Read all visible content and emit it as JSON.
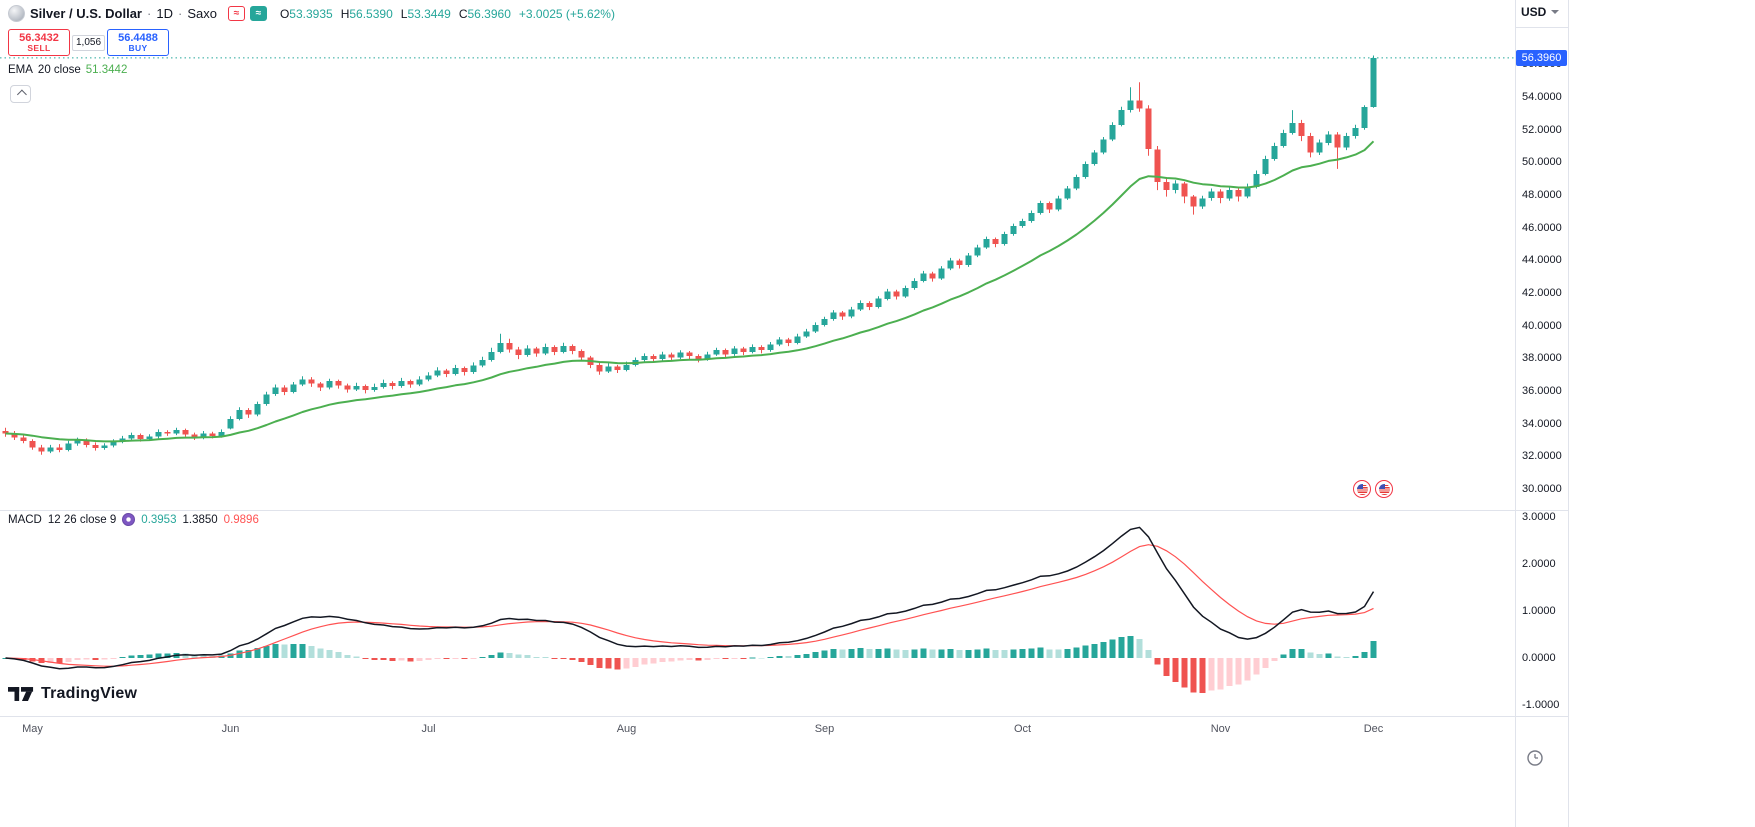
{
  "header": {
    "symbol": "Silver / U.S. Dollar",
    "separator": "·",
    "interval": "1D",
    "exchange": "Saxo",
    "badges": {
      "red_glyph": "≈",
      "teal_glyph": "≈"
    },
    "ohlc": {
      "o_label": "O",
      "o": "53.3935",
      "h_label": "H",
      "h": "56.5390",
      "l_label": "L",
      "l": "53.3449",
      "c_label": "C",
      "c": "56.3960",
      "change": "+3.0025 (+5.62%)"
    },
    "currency": "USD"
  },
  "trade_panel": {
    "sell_price": "56.3432",
    "sell_label": "SELL",
    "spread": "1,056",
    "buy_price": "56.4488",
    "buy_label": "BUY"
  },
  "ema_legend": {
    "title": "EMA",
    "params": "20 close",
    "value": "51.3442"
  },
  "macd_legend": {
    "title": "MACD",
    "params": "12 26 close 9",
    "hist_value": "0.3953",
    "macd_value": "1.3850",
    "signal_value": "0.9896"
  },
  "price_axis": {
    "last_price_label": "56.3960"
  },
  "branding": {
    "logo_text": "TradingView"
  },
  "colors": {
    "up": "#26a69a",
    "down": "#ef5350",
    "ema": "#4caf50",
    "macd_line": "#131722",
    "signal_line": "#ff5252",
    "hist_pos": "#26a69a",
    "hist_pos_weak": "#b2dfdb",
    "hist_neg": "#ef5350",
    "hist_neg_weak": "#ffcdd2",
    "last_price_badge": "#2962ff",
    "last_price_line": "#26a69a",
    "sell": "#f23645",
    "buy": "#2962ff",
    "separator": "#e0e3eb"
  },
  "chart_data": {
    "type": "candlestick",
    "title": "Silver / U.S. Dollar · 1D · Saxo",
    "ema_period": 20,
    "macd_params": [
      12,
      26,
      9
    ],
    "last_price": 56.396,
    "price_range_visible": [
      29.6,
      57.3
    ],
    "macd_range_visible": [
      -1.35,
      3.15
    ],
    "y_ticks_price": [
      "56.0000",
      "54.0000",
      "52.0000",
      "50.0000",
      "48.0000",
      "46.0000",
      "44.0000",
      "42.0000",
      "40.0000",
      "38.0000",
      "36.0000",
      "34.0000",
      "32.0000",
      "30.0000"
    ],
    "y_ticks_macd": [
      "3.0000",
      "2.0000",
      "1.0000",
      "0.0000",
      "-1.0000"
    ],
    "x_ticks": [
      {
        "label": "May",
        "index": 3
      },
      {
        "label": "Jun",
        "index": 25
      },
      {
        "label": "Jul",
        "index": 47
      },
      {
        "label": "Aug",
        "index": 69
      },
      {
        "label": "Sep",
        "index": 91
      },
      {
        "label": "Oct",
        "index": 113
      },
      {
        "label": "Nov",
        "index": 135
      },
      {
        "label": "Dec",
        "index": 152
      }
    ],
    "candles": [
      [
        33.55,
        33.75,
        33.2,
        33.4
      ],
      [
        33.4,
        33.55,
        33.0,
        33.15
      ],
      [
        33.15,
        33.3,
        32.8,
        32.95
      ],
      [
        32.95,
        33.05,
        32.4,
        32.55
      ],
      [
        32.55,
        32.7,
        32.1,
        32.3
      ],
      [
        32.3,
        32.7,
        32.2,
        32.55
      ],
      [
        32.55,
        32.75,
        32.25,
        32.4
      ],
      [
        32.4,
        32.95,
        32.3,
        32.8
      ],
      [
        32.8,
        33.15,
        32.65,
        33.0
      ],
      [
        33.0,
        33.1,
        32.55,
        32.7
      ],
      [
        32.7,
        32.85,
        32.35,
        32.5
      ],
      [
        32.5,
        32.8,
        32.4,
        32.65
      ],
      [
        32.65,
        33.05,
        32.55,
        32.9
      ],
      [
        32.9,
        33.25,
        32.8,
        33.1
      ],
      [
        33.1,
        33.45,
        33.0,
        33.3
      ],
      [
        33.3,
        33.4,
        32.9,
        33.05
      ],
      [
        33.05,
        33.35,
        32.95,
        33.2
      ],
      [
        33.2,
        33.65,
        33.1,
        33.5
      ],
      [
        33.5,
        33.6,
        33.25,
        33.4
      ],
      [
        33.4,
        33.75,
        33.3,
        33.6
      ],
      [
        33.6,
        33.7,
        33.2,
        33.35
      ],
      [
        33.35,
        33.45,
        33.0,
        33.15
      ],
      [
        33.15,
        33.55,
        33.05,
        33.4
      ],
      [
        33.4,
        33.5,
        33.1,
        33.25
      ],
      [
        33.25,
        33.65,
        33.15,
        33.5
      ],
      [
        33.7,
        34.45,
        33.65,
        34.3
      ],
      [
        34.3,
        35.0,
        34.2,
        34.85
      ],
      [
        34.85,
        34.95,
        34.35,
        34.55
      ],
      [
        34.55,
        35.35,
        34.45,
        35.2
      ],
      [
        35.2,
        35.95,
        35.1,
        35.8
      ],
      [
        35.8,
        36.4,
        35.7,
        36.2
      ],
      [
        36.2,
        36.35,
        35.75,
        35.95
      ],
      [
        35.95,
        36.55,
        35.85,
        36.4
      ],
      [
        36.4,
        36.9,
        36.3,
        36.7
      ],
      [
        36.7,
        36.85,
        36.25,
        36.45
      ],
      [
        36.45,
        36.55,
        36.0,
        36.2
      ],
      [
        36.2,
        36.75,
        36.1,
        36.6
      ],
      [
        36.6,
        36.7,
        36.15,
        36.35
      ],
      [
        36.35,
        36.45,
        35.9,
        36.1
      ],
      [
        36.1,
        36.5,
        36.0,
        36.3
      ],
      [
        36.3,
        36.4,
        35.85,
        36.05
      ],
      [
        36.05,
        36.45,
        35.95,
        36.25
      ],
      [
        36.25,
        36.7,
        36.15,
        36.5
      ],
      [
        36.5,
        36.6,
        36.1,
        36.3
      ],
      [
        36.3,
        36.8,
        36.2,
        36.6
      ],
      [
        36.6,
        36.7,
        36.2,
        36.4
      ],
      [
        36.4,
        36.9,
        36.3,
        36.7
      ],
      [
        36.7,
        37.15,
        36.6,
        36.95
      ],
      [
        36.95,
        37.45,
        36.85,
        37.25
      ],
      [
        37.25,
        37.35,
        36.85,
        37.05
      ],
      [
        37.05,
        37.6,
        36.95,
        37.4
      ],
      [
        37.4,
        37.5,
        36.95,
        37.15
      ],
      [
        37.15,
        37.75,
        37.05,
        37.55
      ],
      [
        37.55,
        38.1,
        37.45,
        37.9
      ],
      [
        37.9,
        38.65,
        37.8,
        38.4
      ],
      [
        38.4,
        39.5,
        38.3,
        38.95
      ],
      [
        38.95,
        39.2,
        38.35,
        38.55
      ],
      [
        38.55,
        38.7,
        37.95,
        38.2
      ],
      [
        38.2,
        38.8,
        38.1,
        38.6
      ],
      [
        38.6,
        38.7,
        38.1,
        38.3
      ],
      [
        38.3,
        38.9,
        38.2,
        38.7
      ],
      [
        38.7,
        38.8,
        38.2,
        38.4
      ],
      [
        38.4,
        38.95,
        38.3,
        38.75
      ],
      [
        38.75,
        38.85,
        38.25,
        38.45
      ],
      [
        38.45,
        38.55,
        37.85,
        38.05
      ],
      [
        38.05,
        38.15,
        37.4,
        37.6
      ],
      [
        37.6,
        37.75,
        37.0,
        37.2
      ],
      [
        37.2,
        37.7,
        37.1,
        37.5
      ],
      [
        37.5,
        37.6,
        37.1,
        37.3
      ],
      [
        37.3,
        37.8,
        37.2,
        37.6
      ],
      [
        37.6,
        38.05,
        37.5,
        37.9
      ],
      [
        37.9,
        38.3,
        37.8,
        38.15
      ],
      [
        38.15,
        38.25,
        37.75,
        37.95
      ],
      [
        37.95,
        38.4,
        37.85,
        38.25
      ],
      [
        38.25,
        38.35,
        37.85,
        38.05
      ],
      [
        38.05,
        38.5,
        37.95,
        38.35
      ],
      [
        38.35,
        38.45,
        37.95,
        38.15
      ],
      [
        38.15,
        38.25,
        37.75,
        37.95
      ],
      [
        37.95,
        38.4,
        37.85,
        38.25
      ],
      [
        38.25,
        38.65,
        38.15,
        38.5
      ],
      [
        38.5,
        38.6,
        38.05,
        38.25
      ],
      [
        38.25,
        38.75,
        38.15,
        38.6
      ],
      [
        38.6,
        38.7,
        38.2,
        38.4
      ],
      [
        38.4,
        38.85,
        38.3,
        38.7
      ],
      [
        38.7,
        38.8,
        38.3,
        38.5
      ],
      [
        38.5,
        39.0,
        38.4,
        38.85
      ],
      [
        38.85,
        39.3,
        38.75,
        39.15
      ],
      [
        39.15,
        39.25,
        38.75,
        38.95
      ],
      [
        38.95,
        39.5,
        38.85,
        39.35
      ],
      [
        39.35,
        39.8,
        39.25,
        39.65
      ],
      [
        39.65,
        40.2,
        39.55,
        40.05
      ],
      [
        40.05,
        40.55,
        39.95,
        40.4
      ],
      [
        40.4,
        40.95,
        40.3,
        40.8
      ],
      [
        40.8,
        40.9,
        40.35,
        40.55
      ],
      [
        40.55,
        41.15,
        40.45,
        41.0
      ],
      [
        41.0,
        41.55,
        40.9,
        41.4
      ],
      [
        41.4,
        41.5,
        40.95,
        41.15
      ],
      [
        41.15,
        41.8,
        41.05,
        41.65
      ],
      [
        41.65,
        42.25,
        41.55,
        42.1
      ],
      [
        42.1,
        42.2,
        41.6,
        41.8
      ],
      [
        41.8,
        42.45,
        41.7,
        42.3
      ],
      [
        42.3,
        42.9,
        42.2,
        42.75
      ],
      [
        42.75,
        43.35,
        42.65,
        43.2
      ],
      [
        43.2,
        43.3,
        42.7,
        42.9
      ],
      [
        42.9,
        43.65,
        42.8,
        43.5
      ],
      [
        43.5,
        44.15,
        43.4,
        44.0
      ],
      [
        44.0,
        44.1,
        43.5,
        43.7
      ],
      [
        43.7,
        44.45,
        43.6,
        44.3
      ],
      [
        44.3,
        44.95,
        44.2,
        44.8
      ],
      [
        44.8,
        45.45,
        44.7,
        45.3
      ],
      [
        45.3,
        45.4,
        44.8,
        45.0
      ],
      [
        45.0,
        45.75,
        44.9,
        45.6
      ],
      [
        45.6,
        46.25,
        45.5,
        46.1
      ],
      [
        46.1,
        46.55,
        46.0,
        46.4
      ],
      [
        46.4,
        47.05,
        46.3,
        46.9
      ],
      [
        46.9,
        47.65,
        46.8,
        47.5
      ],
      [
        47.5,
        47.6,
        46.9,
        47.1
      ],
      [
        47.1,
        47.95,
        47.0,
        47.8
      ],
      [
        47.8,
        48.55,
        47.7,
        48.4
      ],
      [
        48.4,
        49.25,
        48.3,
        49.1
      ],
      [
        49.1,
        50.05,
        49.0,
        49.9
      ],
      [
        49.9,
        50.75,
        49.8,
        50.6
      ],
      [
        50.6,
        51.55,
        50.5,
        51.4
      ],
      [
        51.4,
        52.45,
        51.3,
        52.3
      ],
      [
        52.3,
        53.4,
        52.2,
        53.2
      ],
      [
        53.2,
        54.6,
        53.05,
        53.8
      ],
      [
        53.8,
        54.9,
        53.1,
        53.3
      ],
      [
        53.3,
        53.5,
        50.4,
        50.8
      ],
      [
        50.8,
        51.0,
        48.3,
        48.8
      ],
      [
        48.8,
        49.1,
        47.9,
        48.3
      ],
      [
        48.3,
        48.9,
        48.1,
        48.7
      ],
      [
        48.7,
        48.8,
        47.5,
        47.9
      ],
      [
        47.9,
        48.0,
        46.8,
        47.3
      ],
      [
        47.3,
        47.95,
        47.15,
        47.8
      ],
      [
        47.8,
        48.4,
        47.65,
        48.2
      ],
      [
        48.2,
        48.35,
        47.5,
        47.8
      ],
      [
        47.8,
        48.5,
        47.65,
        48.3
      ],
      [
        48.3,
        48.45,
        47.6,
        47.9
      ],
      [
        47.9,
        48.7,
        47.8,
        48.5
      ],
      [
        48.5,
        49.5,
        48.4,
        49.3
      ],
      [
        49.3,
        50.4,
        49.2,
        50.2
      ],
      [
        50.2,
        51.2,
        50.1,
        51.0
      ],
      [
        51.0,
        52.0,
        50.9,
        51.8
      ],
      [
        51.8,
        53.2,
        51.7,
        52.4
      ],
      [
        52.4,
        52.6,
        51.3,
        51.6
      ],
      [
        51.6,
        51.8,
        50.3,
        50.6
      ],
      [
        50.6,
        51.4,
        50.45,
        51.2
      ],
      [
        51.2,
        51.9,
        51.05,
        51.7
      ],
      [
        51.7,
        51.85,
        49.6,
        50.9
      ],
      [
        50.9,
        51.8,
        50.75,
        51.6
      ],
      [
        51.6,
        52.3,
        51.45,
        52.1
      ],
      [
        52.1,
        53.5,
        52.0,
        53.39
      ],
      [
        53.39,
        56.54,
        53.34,
        56.4
      ]
    ]
  }
}
